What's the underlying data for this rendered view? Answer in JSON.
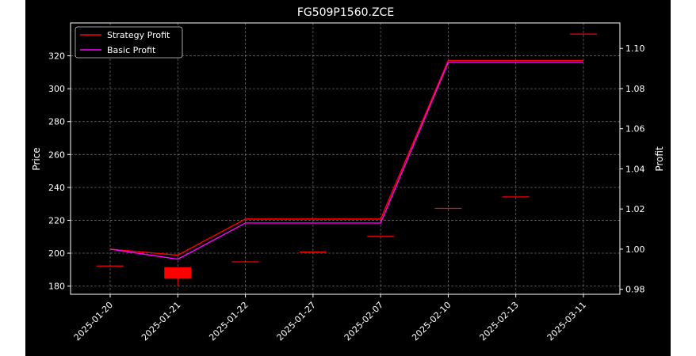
{
  "chart_data": {
    "type": "candlestick+line",
    "title": "FG509P1560.ZCE",
    "ylabel": "Price",
    "y2label": "Profit",
    "categories": [
      "2025-01-20",
      "2025-01-21",
      "2025-01-22",
      "2025-01-27",
      "2025-02-07",
      "2025-02-10",
      "2025-02-13",
      "2025-03-11"
    ],
    "ylim": [
      175,
      340
    ],
    "y_ticks": [
      180,
      200,
      220,
      240,
      260,
      280,
      300,
      320
    ],
    "y2lim": [
      0.9775,
      1.1127
    ],
    "y2_ticks": [
      0.98,
      1.0,
      1.02,
      1.04,
      1.06,
      1.08,
      1.1
    ],
    "candles": [
      {
        "open": 192.5,
        "high": 192.5,
        "low": 192.5,
        "close": 192.5
      },
      {
        "open": 191.5,
        "high": 191.5,
        "low": 180.0,
        "close": 184.5
      },
      {
        "open": 195.0,
        "high": 195.0,
        "low": 195.0,
        "close": 195.0
      },
      {
        "open": 201.0,
        "high": 201.0,
        "low": 201.0,
        "close": 201.0
      },
      {
        "open": 210.5,
        "high": 210.5,
        "low": 210.5,
        "close": 210.5
      },
      {
        "open": 227.5,
        "high": 227.5,
        "low": 227.5,
        "close": 227.5
      },
      {
        "open": 234.5,
        "high": 234.5,
        "low": 234.5,
        "close": 234.5
      },
      {
        "open": 333.5,
        "high": 333.5,
        "low": 333.5,
        "close": 333.5
      }
    ],
    "series": [
      {
        "name": "Strategy Profit",
        "axis": "right",
        "color": "#ff0000",
        "values": [
          1.0,
          0.997,
          1.015,
          1.015,
          1.015,
          1.094,
          1.094,
          1.094
        ]
      },
      {
        "name": "Basic Profit",
        "axis": "right",
        "color": "#ff00ff",
        "values": [
          1.0,
          0.995,
          1.013,
          1.013,
          1.013,
          1.093,
          1.093,
          1.093
        ]
      }
    ],
    "legend_position": "top-left",
    "grid": true,
    "colors": {
      "background": "#000000",
      "foreground": "#ffffff",
      "candle": "#ff0000",
      "grid": "#7f7f7f"
    }
  }
}
